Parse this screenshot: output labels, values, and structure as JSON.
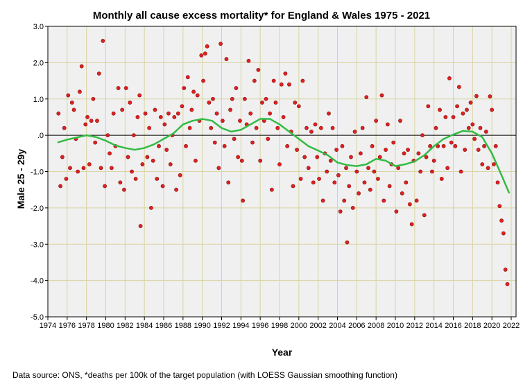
{
  "chart_data": {
    "type": "scatter",
    "title": "Monthly all cause excess mortality* for England & Wales 1975 - 2021",
    "xlabel": "Year",
    "ylabel": "Male 25 - 29y",
    "footer": "Data source: ONS, *deaths per 100k of the target population (with LOESS Gaussian smoothing function)",
    "xlim": [
      1974,
      2022.5
    ],
    "ylim": [
      -5,
      3
    ],
    "xticks": [
      1974,
      1976,
      1978,
      1980,
      1982,
      1984,
      1986,
      1988,
      1990,
      1992,
      1994,
      1996,
      1998,
      2000,
      2002,
      2004,
      2006,
      2008,
      2010,
      2012,
      2014,
      2016,
      2018,
      2020,
      2022
    ],
    "yticks": [
      3,
      2,
      1,
      0,
      -1,
      -2,
      -3,
      -4,
      -5
    ],
    "ytick_labels": [
      "3.0",
      "2.0",
      "1.0",
      ".0",
      "-1.0",
      "-2.0",
      "-3.0",
      "-4.0",
      "-5.0"
    ],
    "grid": true,
    "colors": {
      "points": "#e02020",
      "loess": "#33bb44",
      "grid": "#d9d4a2",
      "background": "#f0f0f0"
    },
    "loess": [
      [
        1975,
        -0.2
      ],
      [
        1976,
        -0.12
      ],
      [
        1977,
        -0.06
      ],
      [
        1978,
        0.0
      ],
      [
        1979,
        -0.05
      ],
      [
        1980,
        -0.15
      ],
      [
        1981,
        -0.28
      ],
      [
        1982,
        -0.35
      ],
      [
        1983,
        -0.4
      ],
      [
        1984,
        -0.35
      ],
      [
        1985,
        -0.25
      ],
      [
        1986,
        -0.1
      ],
      [
        1987,
        0.05
      ],
      [
        1988,
        0.3
      ],
      [
        1989,
        0.4
      ],
      [
        1990,
        0.45
      ],
      [
        1991,
        0.4
      ],
      [
        1992,
        0.2
      ],
      [
        1993,
        0.1
      ],
      [
        1994,
        0.15
      ],
      [
        1995,
        0.3
      ],
      [
        1996,
        0.45
      ],
      [
        1997,
        0.45
      ],
      [
        1998,
        0.3
      ],
      [
        1999,
        0.1
      ],
      [
        2000,
        -0.1
      ],
      [
        2001,
        -0.3
      ],
      [
        2002,
        -0.42
      ],
      [
        2003,
        -0.55
      ],
      [
        2004,
        -0.75
      ],
      [
        2005,
        -0.82
      ],
      [
        2006,
        -0.85
      ],
      [
        2007,
        -0.8
      ],
      [
        2008,
        -0.65
      ],
      [
        2009,
        -0.7
      ],
      [
        2010,
        -0.85
      ],
      [
        2011,
        -0.8
      ],
      [
        2012,
        -0.72
      ],
      [
        2013,
        -0.55
      ],
      [
        2014,
        -0.3
      ],
      [
        2015,
        -0.1
      ],
      [
        2016,
        0.02
      ],
      [
        2017,
        0.12
      ],
      [
        2018,
        0.1
      ],
      [
        2019,
        -0.05
      ],
      [
        2020,
        -0.5
      ],
      [
        2021,
        -1.1
      ],
      [
        2021.8,
        -1.6
      ]
    ],
    "points": [
      [
        1975.1,
        0.6
      ],
      [
        1975.3,
        -1.4
      ],
      [
        1975.5,
        -0.6
      ],
      [
        1975.7,
        0.2
      ],
      [
        1975.9,
        -1.2
      ],
      [
        1976.1,
        1.1
      ],
      [
        1976.3,
        -0.9
      ],
      [
        1976.5,
        0.9
      ],
      [
        1976.7,
        0.7
      ],
      [
        1976.9,
        -0.1
      ],
      [
        1977.1,
        -1.0
      ],
      [
        1977.3,
        1.2
      ],
      [
        1977.5,
        1.9
      ],
      [
        1977.7,
        -0.9
      ],
      [
        1977.9,
        0.3
      ],
      [
        1978.1,
        0.5
      ],
      [
        1978.3,
        -0.8
      ],
      [
        1978.5,
        0.4
      ],
      [
        1978.7,
        1.0
      ],
      [
        1978.9,
        -0.2
      ],
      [
        1979.1,
        0.4
      ],
      [
        1979.3,
        1.7
      ],
      [
        1979.5,
        -0.9
      ],
      [
        1979.7,
        2.6
      ],
      [
        1979.9,
        -1.4
      ],
      [
        1980.2,
        0.0
      ],
      [
        1980.4,
        -0.5
      ],
      [
        1980.6,
        -0.9
      ],
      [
        1980.8,
        0.6
      ],
      [
        1981.0,
        -0.3
      ],
      [
        1981.3,
        1.3
      ],
      [
        1981.5,
        -1.3
      ],
      [
        1981.7,
        0.7
      ],
      [
        1981.9,
        -1.5
      ],
      [
        1982.1,
        1.3
      ],
      [
        1982.3,
        -0.6
      ],
      [
        1982.5,
        0.9
      ],
      [
        1982.7,
        -1.0
      ],
      [
        1982.9,
        0.0
      ],
      [
        1983.1,
        -1.2
      ],
      [
        1983.3,
        0.5
      ],
      [
        1983.5,
        1.1
      ],
      [
        1983.6,
        -2.5
      ],
      [
        1983.8,
        -0.8
      ],
      [
        1984.1,
        0.6
      ],
      [
        1984.3,
        -0.6
      ],
      [
        1984.5,
        0.2
      ],
      [
        1984.7,
        -2.0
      ],
      [
        1984.9,
        -0.7
      ],
      [
        1985.1,
        0.7
      ],
      [
        1985.3,
        -1.2
      ],
      [
        1985.5,
        -0.3
      ],
      [
        1985.7,
        0.5
      ],
      [
        1985.9,
        -1.4
      ],
      [
        1986.1,
        0.3
      ],
      [
        1986.3,
        -0.4
      ],
      [
        1986.5,
        0.6
      ],
      [
        1986.7,
        -0.8
      ],
      [
        1986.9,
        0.0
      ],
      [
        1987.1,
        0.5
      ],
      [
        1987.3,
        -1.5
      ],
      [
        1987.5,
        0.6
      ],
      [
        1987.7,
        -1.1
      ],
      [
        1987.9,
        0.8
      ],
      [
        1988.1,
        1.3
      ],
      [
        1988.3,
        -0.3
      ],
      [
        1988.5,
        1.6
      ],
      [
        1988.7,
        0.2
      ],
      [
        1988.9,
        0.7
      ],
      [
        1989.1,
        1.2
      ],
      [
        1989.3,
        -0.7
      ],
      [
        1989.5,
        1.1
      ],
      [
        1989.7,
        0.4
      ],
      [
        1989.9,
        2.2
      ],
      [
        1990.1,
        1.5
      ],
      [
        1990.3,
        2.25
      ],
      [
        1990.5,
        2.45
      ],
      [
        1990.7,
        0.9
      ],
      [
        1990.9,
        0.2
      ],
      [
        1991.1,
        1.0
      ],
      [
        1991.3,
        -0.2
      ],
      [
        1991.5,
        0.6
      ],
      [
        1991.7,
        -0.9
      ],
      [
        1991.9,
        2.52
      ],
      [
        1992.1,
        0.4
      ],
      [
        1992.3,
        -0.3
      ],
      [
        1992.5,
        2.1
      ],
      [
        1992.7,
        -1.3
      ],
      [
        1992.9,
        0.7
      ],
      [
        1993.1,
        1.0
      ],
      [
        1993.3,
        -0.1
      ],
      [
        1993.5,
        1.3
      ],
      [
        1993.7,
        -0.6
      ],
      [
        1993.9,
        0.4
      ],
      [
        1994.1,
        -0.7
      ],
      [
        1994.2,
        -1.8
      ],
      [
        1994.4,
        1.0
      ],
      [
        1994.6,
        0.3
      ],
      [
        1994.8,
        2.05
      ],
      [
        1995.0,
        0.6
      ],
      [
        1995.2,
        -0.2
      ],
      [
        1995.4,
        1.5
      ],
      [
        1995.6,
        0.2
      ],
      [
        1995.8,
        1.8
      ],
      [
        1996.0,
        -0.7
      ],
      [
        1996.2,
        0.9
      ],
      [
        1996.4,
        0.4
      ],
      [
        1996.6,
        1.0
      ],
      [
        1996.8,
        -0.1
      ],
      [
        1997.0,
        0.6
      ],
      [
        1997.2,
        -1.5
      ],
      [
        1997.4,
        1.5
      ],
      [
        1997.6,
        0.9
      ],
      [
        1997.8,
        0.2
      ],
      [
        1998.0,
        -0.8
      ],
      [
        1998.2,
        1.4
      ],
      [
        1998.4,
        0.5
      ],
      [
        1998.6,
        1.7
      ],
      [
        1998.8,
        -0.3
      ],
      [
        1999.0,
        1.4
      ],
      [
        1999.2,
        0.1
      ],
      [
        1999.4,
        -1.4
      ],
      [
        1999.6,
        0.9
      ],
      [
        1999.8,
        -0.4
      ],
      [
        2000.0,
        0.8
      ],
      [
        2000.2,
        -1.2
      ],
      [
        2000.4,
        1.5
      ],
      [
        2000.6,
        -0.6
      ],
      [
        2000.8,
        0.2
      ],
      [
        2001.0,
        -0.9
      ],
      [
        2001.3,
        0.1
      ],
      [
        2001.5,
        -1.3
      ],
      [
        2001.7,
        0.3
      ],
      [
        2001.9,
        -0.6
      ],
      [
        2002.1,
        -1.2
      ],
      [
        2002.3,
        0.2
      ],
      [
        2002.5,
        -1.8
      ],
      [
        2002.7,
        -0.5
      ],
      [
        2002.9,
        -1.0
      ],
      [
        2003.1,
        0.6
      ],
      [
        2003.3,
        -0.7
      ],
      [
        2003.5,
        0.2
      ],
      [
        2003.7,
        -1.3
      ],
      [
        2003.9,
        -0.4
      ],
      [
        2004.1,
        -1.1
      ],
      [
        2004.3,
        -2.1
      ],
      [
        2004.5,
        -0.3
      ],
      [
        2004.7,
        -1.8
      ],
      [
        2004.9,
        -0.9
      ],
      [
        2005.0,
        -2.95
      ],
      [
        2005.2,
        -1.4
      ],
      [
        2005.4,
        -0.6
      ],
      [
        2005.6,
        -2.0
      ],
      [
        2005.8,
        0.1
      ],
      [
        2006.0,
        -1.0
      ],
      [
        2006.2,
        -1.6
      ],
      [
        2006.4,
        -0.5
      ],
      [
        2006.6,
        0.2
      ],
      [
        2006.8,
        -1.3
      ],
      [
        2007.0,
        1.05
      ],
      [
        2007.2,
        -0.9
      ],
      [
        2007.4,
        -1.5
      ],
      [
        2007.6,
        -0.3
      ],
      [
        2007.8,
        -1.0
      ],
      [
        2008.0,
        0.4
      ],
      [
        2008.2,
        -1.2
      ],
      [
        2008.4,
        -0.6
      ],
      [
        2008.6,
        1.1
      ],
      [
        2008.8,
        -1.8
      ],
      [
        2009.0,
        -0.4
      ],
      [
        2009.2,
        0.3
      ],
      [
        2009.4,
        -1.4
      ],
      [
        2009.6,
        -0.8
      ],
      [
        2009.8,
        -0.2
      ],
      [
        2010.1,
        -2.1
      ],
      [
        2010.3,
        -0.9
      ],
      [
        2010.5,
        0.4
      ],
      [
        2010.7,
        -1.6
      ],
      [
        2010.9,
        -0.5
      ],
      [
        2011.1,
        -1.3
      ],
      [
        2011.3,
        -0.4
      ],
      [
        2011.5,
        -1.9
      ],
      [
        2011.7,
        -2.45
      ],
      [
        2011.9,
        -0.7
      ],
      [
        2012.2,
        -1.8
      ],
      [
        2012.4,
        -0.5
      ],
      [
        2012.6,
        -1.0
      ],
      [
        2012.8,
        0.0
      ],
      [
        2013.0,
        -2.2
      ],
      [
        2013.2,
        -0.6
      ],
      [
        2013.4,
        0.8
      ],
      [
        2013.6,
        -0.3
      ],
      [
        2013.8,
        -1.0
      ],
      [
        2014.0,
        -0.7
      ],
      [
        2014.2,
        0.2
      ],
      [
        2014.4,
        -0.3
      ],
      [
        2014.6,
        0.7
      ],
      [
        2014.8,
        -1.2
      ],
      [
        2015.0,
        -0.3
      ],
      [
        2015.2,
        0.5
      ],
      [
        2015.4,
        -0.9
      ],
      [
        2015.6,
        1.57
      ],
      [
        2015.8,
        -0.2
      ],
      [
        2016.0,
        0.5
      ],
      [
        2016.2,
        -0.3
      ],
      [
        2016.4,
        0.8
      ],
      [
        2016.6,
        1.33
      ],
      [
        2016.8,
        -1.0
      ],
      [
        2017.0,
        0.6
      ],
      [
        2017.2,
        -0.4
      ],
      [
        2017.4,
        0.7
      ],
      [
        2017.6,
        0.2
      ],
      [
        2017.8,
        0.9
      ],
      [
        2018.0,
        0.3
      ],
      [
        2018.2,
        -0.1
      ],
      [
        2018.4,
        1.08
      ],
      [
        2018.6,
        -0.4
      ],
      [
        2018.8,
        0.2
      ],
      [
        2019.0,
        -0.8
      ],
      [
        2019.2,
        -0.3
      ],
      [
        2019.4,
        0.1
      ],
      [
        2019.6,
        -0.9
      ],
      [
        2019.8,
        1.07
      ],
      [
        2020.0,
        0.7
      ],
      [
        2020.2,
        -0.8
      ],
      [
        2020.4,
        -0.3
      ],
      [
        2020.6,
        -1.3
      ],
      [
        2020.8,
        -1.95
      ],
      [
        2021.0,
        -2.35
      ],
      [
        2021.2,
        -2.7
      ],
      [
        2021.4,
        -3.7
      ],
      [
        2021.6,
        -4.1
      ]
    ]
  }
}
